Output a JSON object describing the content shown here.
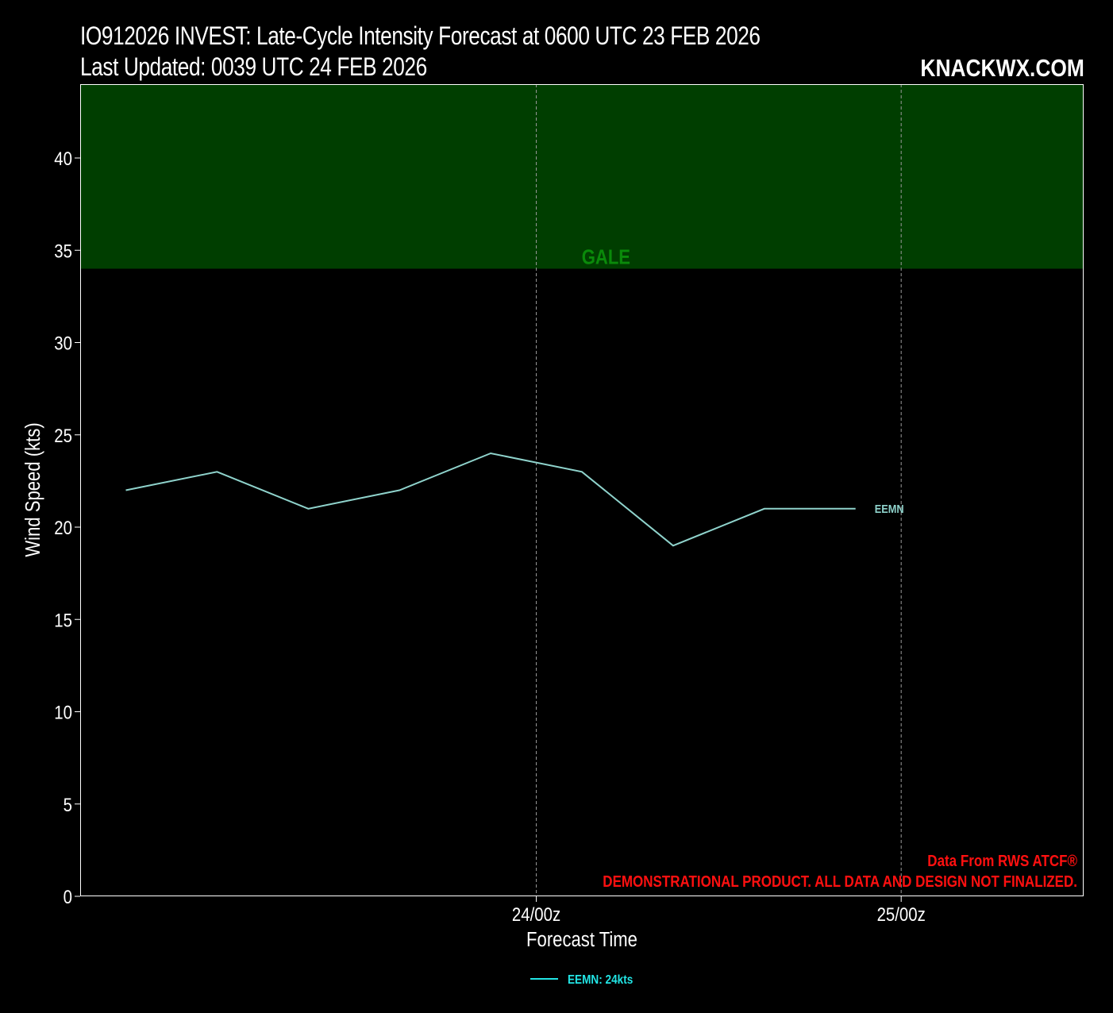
{
  "header": {
    "title_line1": "IO912026 INVEST: Late-Cycle Intensity Forecast at 0600 UTC 23 FEB 2026",
    "title_line2": "Last Updated: 0039 UTC 24 FEB 2026",
    "brand": "KNACKWX.COM"
  },
  "colors": {
    "background": "#000000",
    "gale_band": "#003e00",
    "gale_text": "#0a8a0a",
    "series_line": "#8fd3cc",
    "legend_text": "#22e5e5",
    "credit_text": "#ff1010"
  },
  "chart_data": {
    "type": "line",
    "title": "IO912026 INVEST: Late-Cycle Intensity Forecast at 0600 UTC 23 FEB 2026",
    "xlabel": "Forecast Time",
    "ylabel": "Wind Speed (kts)",
    "ylim": [
      0,
      44
    ],
    "yticks": [
      0,
      5,
      10,
      15,
      20,
      25,
      30,
      35,
      40
    ],
    "xlim_hours": [
      -6,
      60
    ],
    "xticks": [
      {
        "hour": 24,
        "label": "24/00z"
      },
      {
        "hour": 48,
        "label": "25/00z"
      }
    ],
    "grid": "dashed vertical lines at x ticks",
    "bands": [
      {
        "label": "GALE",
        "from": 34,
        "to": 44
      }
    ],
    "series": [
      {
        "name": "EEMN",
        "end_label": "EEMN",
        "legend_label": "EEMN: 24kts",
        "points": [
          {
            "hour": -3,
            "value": 22
          },
          {
            "hour": 3,
            "value": 23
          },
          {
            "hour": 9,
            "value": 21
          },
          {
            "hour": 15,
            "value": 22
          },
          {
            "hour": 21,
            "value": 24
          },
          {
            "hour": 27,
            "value": 23
          },
          {
            "hour": 33,
            "value": 19
          },
          {
            "hour": 39,
            "value": 21
          },
          {
            "hour": 45,
            "value": 21
          }
        ]
      }
    ],
    "legend_position": "bottom-center",
    "annotations": [
      "Data From RWS ATCF®",
      "DEMONSTRATIONAL PRODUCT. ALL DATA AND DESIGN NOT FINALIZED."
    ]
  }
}
